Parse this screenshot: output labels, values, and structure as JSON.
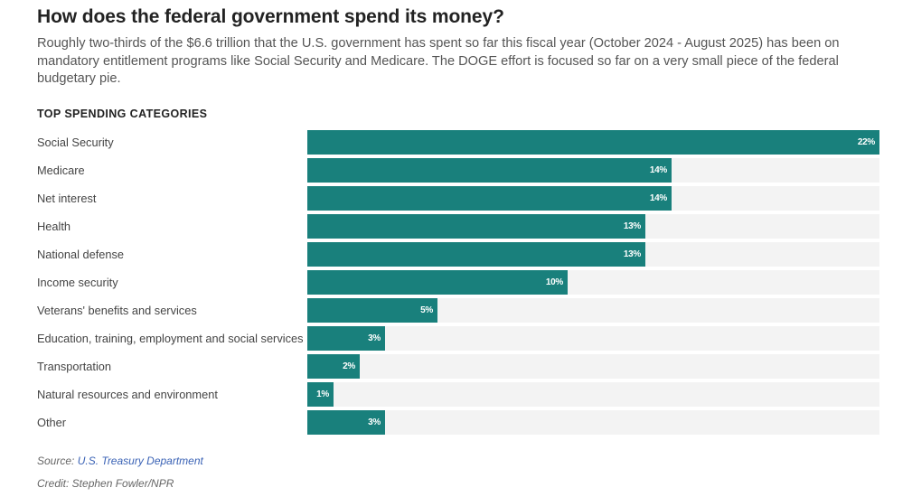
{
  "header": {
    "title": "How does the federal government spend its money?",
    "subtitle": "Roughly two-thirds of the $6.6 trillion that the U.S. government has spent so far this fiscal year (October 2024 - August 2025) has been on mandatory entitlement programs like Social Security and Medicare. The DOGE effort is focused so far on a very small piece of the federal budgetary pie."
  },
  "colors": {
    "bar": "#19807c",
    "track": "#f3f3f3",
    "link": "#3a62b5"
  },
  "chart_data": {
    "type": "bar",
    "orientation": "horizontal",
    "title": "TOP SPENDING CATEGORIES",
    "xlabel": "",
    "ylabel": "",
    "unit": "%",
    "xlim": [
      0,
      22
    ],
    "grid": false,
    "categories": [
      "Social Security",
      "Medicare",
      "Net interest",
      "Health",
      "National defense",
      "Income security",
      "Veterans' benefits and services",
      "Education, training, employment and social services",
      "Transportation",
      "Natural resources and environment",
      "Other"
    ],
    "values": [
      22,
      14,
      14,
      13,
      13,
      10,
      5,
      3,
      2,
      1,
      3
    ],
    "labels": [
      "22%",
      "14%",
      "14%",
      "13%",
      "13%",
      "10%",
      "5%",
      "3%",
      "2%",
      "1%",
      "3%"
    ]
  },
  "footer": {
    "source_prefix": "Source: ",
    "source_link": "U.S. Treasury Department",
    "credit": "Credit: Stephen Fowler/NPR"
  }
}
